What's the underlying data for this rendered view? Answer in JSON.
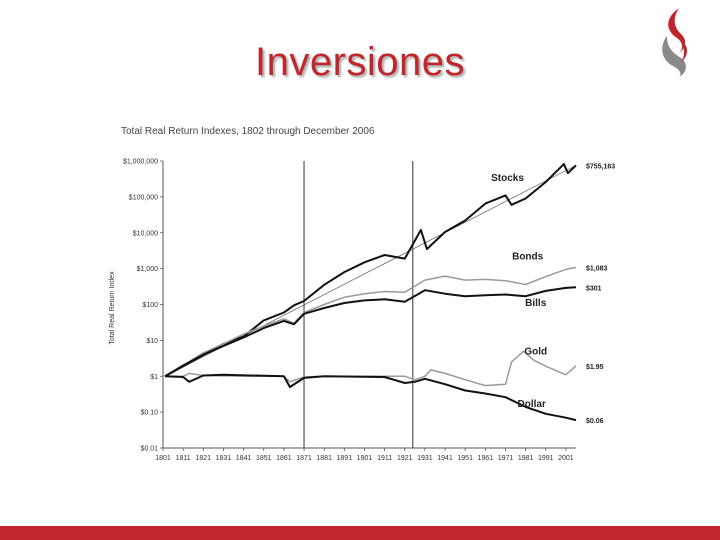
{
  "slide": {
    "title": "Inversiones",
    "colors": {
      "accent": "#c0272d",
      "logo_gray": "#8a8a8a"
    },
    "logo_icon": "flame-icon"
  },
  "chart_data": {
    "type": "line",
    "title": "Total Real Return Indexes, 1802 through December 2006",
    "ylabel": "Total Real Return Index",
    "xlabel": "",
    "yscale": "log",
    "ylim": [
      0.01,
      1000000
    ],
    "xlim": [
      1801,
      2006
    ],
    "y_ticks": [
      {
        "value": 1000000,
        "label": "$1,000,000"
      },
      {
        "value": 100000,
        "label": "$100,000"
      },
      {
        "value": 10000,
        "label": "$10,000"
      },
      {
        "value": 1000,
        "label": "$1,000"
      },
      {
        "value": 100,
        "label": "$100"
      },
      {
        "value": 10,
        "label": "$10"
      },
      {
        "value": 1,
        "label": "$1"
      },
      {
        "value": 0.1,
        "label": "$0.10"
      },
      {
        "value": 0.01,
        "label": "$0.01"
      }
    ],
    "x_ticks": [
      1801,
      1811,
      1821,
      1831,
      1841,
      1851,
      1861,
      1871,
      1881,
      1891,
      1901,
      1911,
      1921,
      1931,
      1941,
      1951,
      1961,
      1971,
      1981,
      1991,
      2001
    ],
    "vertical_lines": [
      1871,
      1925
    ],
    "grid": false,
    "series": [
      {
        "name": "Stocks",
        "end_label": "$755,163",
        "color": "#111111",
        "width": 2,
        "x": [
          1802,
          1811,
          1821,
          1831,
          1841,
          1851,
          1861,
          1866,
          1871,
          1881,
          1891,
          1901,
          1911,
          1921,
          1929,
          1932,
          1941,
          1951,
          1961,
          1971,
          1974,
          1981,
          1991,
          2000,
          2002,
          2006
        ],
        "y": [
          1,
          1.9,
          3.9,
          8,
          12.8,
          36,
          60,
          95,
          125,
          355,
          800,
          1500,
          2400,
          1900,
          12000,
          3500,
          10500,
          22000,
          65000,
          110000,
          60000,
          90000,
          260000,
          820000,
          460000,
          755163
        ]
      },
      {
        "name": "Bonds",
        "end_label": "$1,083",
        "color": "#9a9a9a",
        "width": 1.5,
        "x": [
          1802,
          1811,
          1821,
          1831,
          1841,
          1851,
          1861,
          1866,
          1871,
          1881,
          1891,
          1901,
          1911,
          1921,
          1931,
          1941,
          1951,
          1961,
          1971,
          1981,
          1991,
          2001,
          2006
        ],
        "y": [
          1,
          2,
          4.5,
          8,
          15,
          25,
          40,
          30,
          60,
          100,
          160,
          200,
          230,
          220,
          480,
          620,
          480,
          500,
          460,
          360,
          600,
          950,
          1083
        ]
      },
      {
        "name": "Bills",
        "end_label": "$301",
        "color": "#111111",
        "width": 2,
        "x": [
          1802,
          1811,
          1821,
          1831,
          1841,
          1851,
          1861,
          1866,
          1871,
          1881,
          1891,
          1901,
          1911,
          1921,
          1931,
          1941,
          1951,
          1961,
          1971,
          1981,
          1991,
          2001,
          2006
        ],
        "y": [
          1,
          2,
          4,
          7,
          12,
          22,
          35,
          28,
          55,
          80,
          110,
          130,
          140,
          120,
          250,
          200,
          170,
          180,
          190,
          170,
          240,
          290,
          301
        ]
      },
      {
        "name": "Gold",
        "end_label": "$1.95",
        "color": "#9a9a9a",
        "width": 1.5,
        "x": [
          1802,
          1811,
          1814,
          1821,
          1831,
          1861,
          1864,
          1871,
          1881,
          1911,
          1921,
          1926,
          1931,
          1934,
          1941,
          1951,
          1961,
          1971,
          1974,
          1980,
          1985,
          1991,
          2001,
          2006
        ],
        "y": [
          1,
          1,
          1.2,
          1.05,
          1.02,
          1,
          0.7,
          0.95,
          1,
          1,
          1,
          0.8,
          1,
          1.5,
          1.2,
          0.8,
          0.55,
          0.6,
          2.5,
          5,
          2.8,
          1.9,
          1.1,
          1.95
        ]
      },
      {
        "name": "Dollar",
        "end_label": "$0.06",
        "color": "#111111",
        "width": 2,
        "x": [
          1802,
          1811,
          1814,
          1821,
          1831,
          1861,
          1864,
          1871,
          1881,
          1911,
          1921,
          1926,
          1931,
          1941,
          1951,
          1961,
          1971,
          1981,
          1991,
          2001,
          2006
        ],
        "y": [
          1,
          0.95,
          0.7,
          1.05,
          1.1,
          1,
          0.5,
          0.9,
          1,
          0.95,
          0.65,
          0.7,
          0.85,
          0.6,
          0.4,
          0.33,
          0.26,
          0.14,
          0.09,
          0.07,
          0.06
        ]
      }
    ]
  }
}
